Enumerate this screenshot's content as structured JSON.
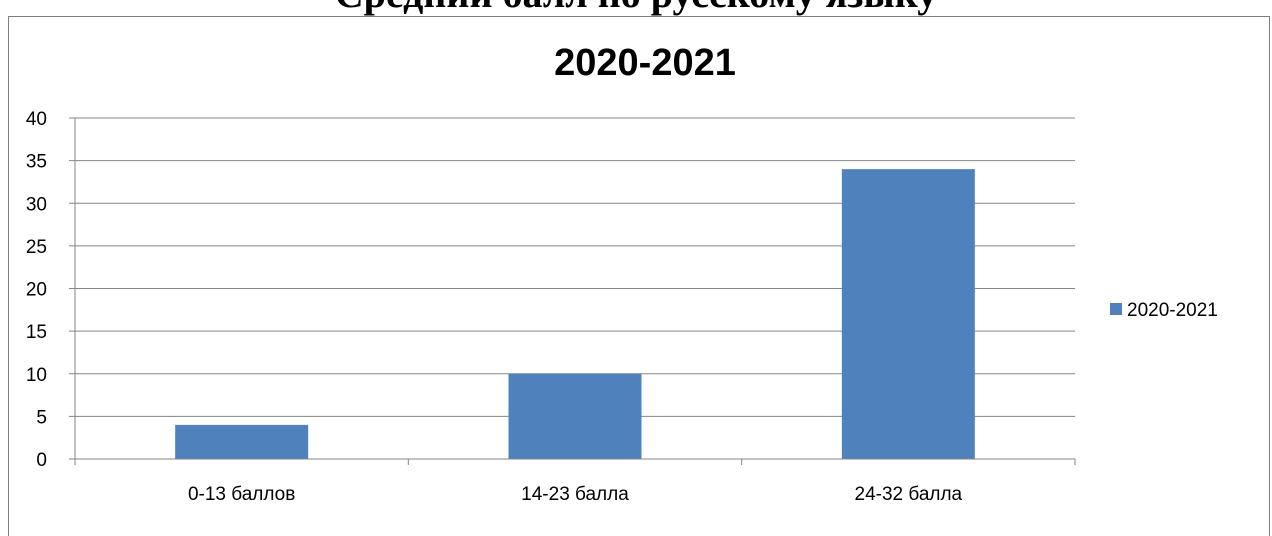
{
  "page_heading": "Средний балл по русскому языку",
  "chart_data": {
    "type": "bar",
    "title": "2020-2021",
    "categories": [
      "0-13 баллов",
      "14-23 балла",
      "24-32 балла"
    ],
    "series": [
      {
        "name": "2020-2021",
        "values": [
          4,
          10,
          34
        ],
        "color": "#4f81bd"
      }
    ],
    "ylim": [
      0,
      40
    ],
    "yticks": [
      0,
      5,
      10,
      15,
      20,
      25,
      30,
      35,
      40
    ],
    "grid": true,
    "legend": "right",
    "xlabel": "",
    "ylabel": ""
  }
}
